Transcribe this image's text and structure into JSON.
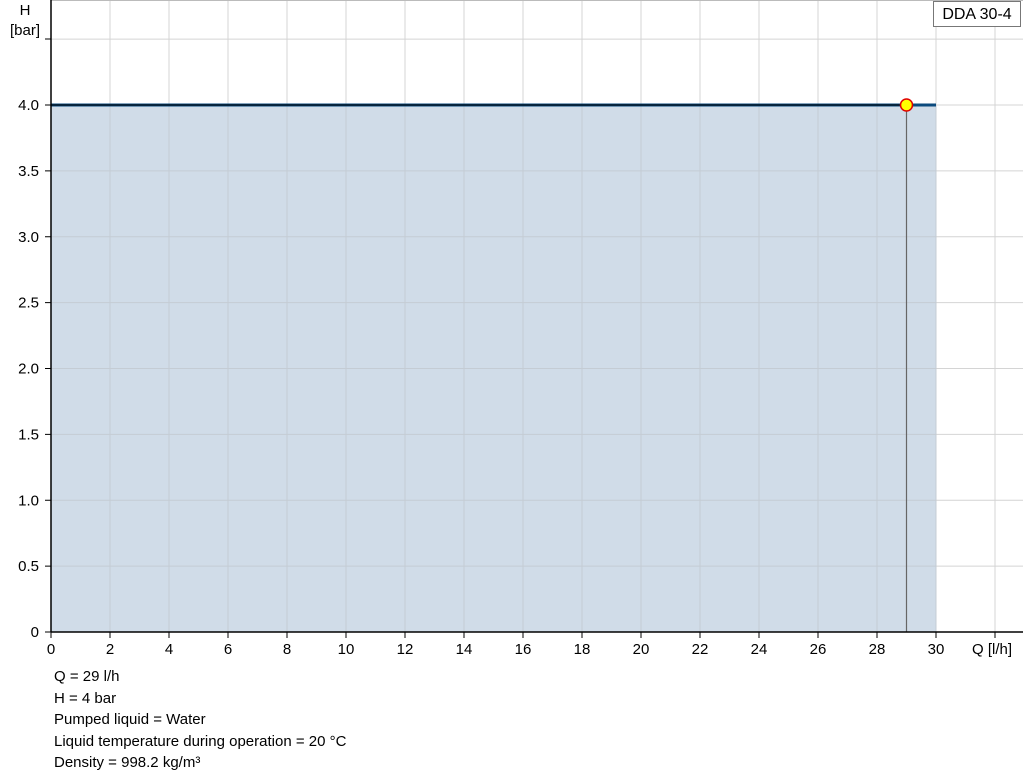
{
  "chart_data": {
    "type": "area",
    "xlabel": "Q [l/h]",
    "ylabel_line1": "H",
    "ylabel_line2": "[bar]",
    "xlim": [
      0,
      32
    ],
    "ylim": [
      0,
      4.8
    ],
    "xticks": [
      0,
      2,
      4,
      6,
      8,
      10,
      12,
      14,
      16,
      18,
      20,
      22,
      24,
      26,
      28,
      30
    ],
    "yticks": [
      0,
      0.5,
      1.0,
      1.5,
      2.0,
      2.5,
      3.0,
      3.5,
      4.0
    ],
    "ytick_labels": [
      "0",
      "0.5",
      "1.0",
      "1.5",
      "2.0",
      "2.5",
      "3.0",
      "3.5",
      "4.0"
    ],
    "grid": true,
    "series": [
      {
        "name": "DDA 30-4",
        "x": [
          0,
          30
        ],
        "y": [
          4.0,
          4.0
        ],
        "color": "#0b4a7d",
        "fill": "#d0dce8"
      }
    ],
    "duty_point": {
      "x": 29,
      "y": 4.0,
      "fill": "#ffff00",
      "stroke": "#e00000"
    },
    "legend_placement": "top-right"
  },
  "legend": {
    "label": "DDA 30-4"
  },
  "info": [
    "Q = 29 l/h",
    "H = 4 bar",
    "Pumped liquid = Water",
    "Liquid temperature during operation = 20 °C",
    "Density = 998.2 kg/m³"
  ]
}
